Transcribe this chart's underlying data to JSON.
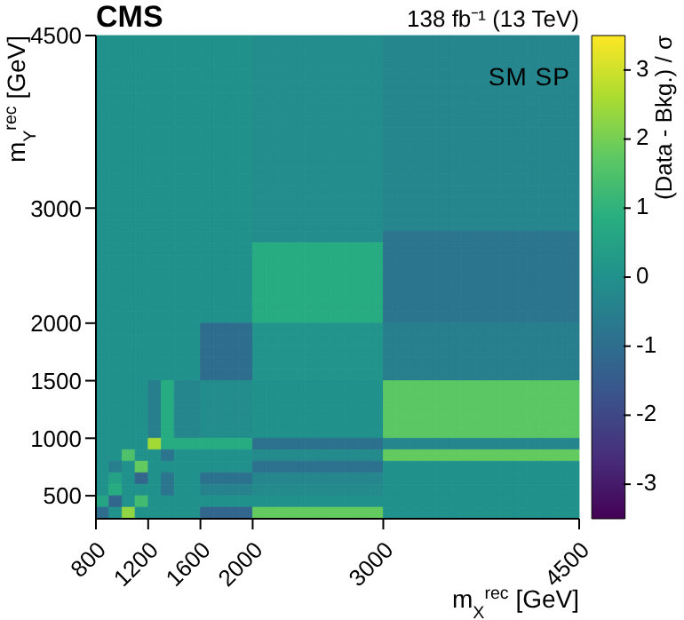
{
  "chart_data": {
    "type": "heatmap",
    "title": "CMS",
    "subtitle": "138 fb⁻¹ (13 TeV)",
    "annotations": [
      "SM SP"
    ],
    "xlabel": "m$_{X}$$^{rec}$ [GeV]",
    "ylabel": "m$_{Y}$$^{rec}$ [GeV]",
    "clabel": "(Data - Bkg.) / σ",
    "xlim": [
      800,
      4500
    ],
    "xticks": [
      800,
      1200,
      1600,
      2000,
      3000,
      4500
    ],
    "ylim": [
      300,
      4500
    ],
    "yticks": [
      500,
      1000,
      1500,
      2000,
      3000,
      4500
    ],
    "clim": [
      -3.5,
      3.5
    ],
    "cticks": [
      -3,
      -2,
      -1,
      0,
      1,
      2,
      3
    ],
    "cells": [
      [
        0,
        0,
        0,
        0,
        0,
        0,
        0,
        0,
        0,
        0,
        0,
        0,
        -0.1,
        -0.1,
        -0.1,
        -0.1,
        -0.1,
        -0.1,
        -0.1,
        -0.1,
        -0.1,
        -0.1,
        -0.3,
        -0.3,
        -0.3,
        -0.3,
        -0.3,
        -0.3,
        -0.3,
        -0.3,
        -0.3,
        -0.3,
        -0.3,
        -0.3,
        -0.3,
        -0.3,
        -0.3
      ],
      [
        0,
        0,
        0,
        0,
        0,
        0,
        0,
        0,
        0,
        0,
        0,
        0,
        -0.1,
        -0.1,
        -0.1,
        -0.1,
        -0.1,
        -0.1,
        -0.1,
        -0.1,
        -0.1,
        -0.1,
        -0.3,
        -0.3,
        -0.3,
        -0.3,
        -0.3,
        -0.3,
        -0.3,
        -0.3,
        -0.3,
        -0.3,
        -0.3,
        -0.3,
        -0.3,
        -0.3,
        -0.3
      ],
      [
        0,
        0,
        0,
        0,
        0,
        0,
        0,
        0,
        0,
        0,
        0,
        0,
        -0.1,
        -0.1,
        -0.1,
        -0.1,
        -0.1,
        -0.1,
        -0.1,
        -0.1,
        -0.1,
        -0.1,
        -0.3,
        -0.3,
        -0.3,
        -0.3,
        -0.3,
        -0.3,
        -0.3,
        -0.3,
        -0.3,
        -0.3,
        -0.3,
        -0.3,
        -0.3,
        -0.3,
        -0.3
      ],
      [
        0,
        0,
        0,
        0,
        0,
        0,
        0,
        0,
        0,
        0,
        0,
        0,
        -0.1,
        -0.1,
        -0.1,
        -0.1,
        -0.1,
        -0.1,
        -0.1,
        -0.1,
        -0.1,
        -0.1,
        -0.3,
        -0.3,
        -0.3,
        -0.3,
        -0.3,
        -0.3,
        -0.3,
        -0.3,
        -0.3,
        -0.3,
        -0.3,
        -0.3,
        -0.3,
        -0.3,
        -0.3
      ],
      [
        0,
        0,
        0,
        0,
        0,
        0,
        0,
        0,
        0,
        0,
        0,
        0,
        -0.1,
        -0.1,
        -0.1,
        -0.1,
        -0.1,
        -0.1,
        -0.1,
        -0.1,
        -0.1,
        -0.1,
        -0.3,
        -0.3,
        -0.3,
        -0.3,
        -0.3,
        -0.3,
        -0.3,
        -0.3,
        -0.3,
        -0.3,
        -0.3,
        -0.3,
        -0.3,
        -0.3,
        -0.3
      ],
      [
        0,
        0,
        0,
        0,
        0,
        0,
        0,
        0,
        0,
        0,
        0,
        0,
        -0.1,
        -0.1,
        -0.1,
        -0.1,
        -0.1,
        -0.1,
        -0.1,
        -0.1,
        -0.1,
        -0.1,
        -0.3,
        -0.3,
        -0.3,
        -0.3,
        -0.3,
        -0.3,
        -0.3,
        -0.3,
        -0.3,
        -0.3,
        -0.3,
        -0.3,
        -0.3,
        -0.3,
        -0.3
      ],
      [
        0,
        0,
        0,
        0,
        0,
        0,
        0,
        0,
        0,
        0,
        0,
        0,
        -0.1,
        -0.1,
        -0.1,
        -0.1,
        -0.1,
        -0.1,
        -0.1,
        -0.1,
        -0.1,
        -0.1,
        -0.3,
        -0.3,
        -0.3,
        -0.3,
        -0.3,
        -0.3,
        -0.3,
        -0.3,
        -0.3,
        -0.3,
        -0.3,
        -0.3,
        -0.3,
        -0.3,
        -0.3
      ],
      [
        0,
        0,
        0,
        0,
        0,
        0,
        0,
        0,
        0,
        0,
        0,
        0,
        -0.1,
        -0.1,
        -0.1,
        -0.1,
        -0.1,
        -0.1,
        -0.1,
        -0.1,
        -0.1,
        -0.1,
        -0.3,
        -0.3,
        -0.3,
        -0.3,
        -0.3,
        -0.3,
        -0.3,
        -0.3,
        -0.3,
        -0.3,
        -0.3,
        -0.3,
        -0.3,
        -0.3,
        -0.3
      ],
      [
        0,
        0,
        0,
        0,
        0,
        0,
        0,
        0,
        0,
        0,
        0,
        0,
        -0.1,
        -0.1,
        -0.1,
        -0.1,
        -0.1,
        -0.1,
        -0.1,
        -0.1,
        -0.1,
        -0.1,
        -0.3,
        -0.3,
        -0.3,
        -0.3,
        -0.3,
        -0.3,
        -0.3,
        -0.3,
        -0.3,
        -0.3,
        -0.3,
        -0.3,
        -0.3,
        -0.3,
        -0.3
      ],
      [
        0,
        0,
        0,
        0,
        0,
        0,
        0,
        0,
        0,
        0,
        0,
        0,
        -0.1,
        -0.1,
        -0.1,
        -0.1,
        -0.1,
        -0.1,
        -0.1,
        -0.1,
        -0.1,
        -0.1,
        -0.3,
        -0.3,
        -0.3,
        -0.3,
        -0.3,
        -0.3,
        -0.3,
        -0.3,
        -0.3,
        -0.3,
        -0.3,
        -0.3,
        -0.3,
        -0.3,
        -0.3
      ],
      [
        0,
        0,
        0,
        0,
        0,
        0,
        0,
        0,
        0,
        0,
        0,
        0,
        -0.1,
        -0.1,
        -0.1,
        -0.1,
        -0.1,
        -0.1,
        -0.1,
        -0.1,
        -0.1,
        -0.1,
        -0.3,
        -0.3,
        -0.3,
        -0.3,
        -0.3,
        -0.3,
        -0.3,
        -0.3,
        -0.3,
        -0.3,
        -0.3,
        -0.3,
        -0.3,
        -0.3,
        -0.3
      ],
      [
        0,
        0,
        0,
        0,
        0,
        0,
        0,
        0,
        0,
        0,
        0,
        0,
        -0.1,
        -0.1,
        -0.1,
        -0.1,
        -0.1,
        -0.1,
        -0.1,
        -0.1,
        -0.1,
        -0.1,
        -0.3,
        -0.3,
        -0.3,
        -0.3,
        -0.3,
        -0.3,
        -0.3,
        -0.3,
        -0.3,
        -0.3,
        -0.3,
        -0.3,
        -0.3,
        -0.3,
        -0.3
      ],
      [
        0,
        0,
        0,
        0,
        0,
        0,
        0,
        0,
        0,
        0,
        0,
        0,
        -0.1,
        -0.1,
        -0.1,
        -0.1,
        -0.1,
        -0.1,
        -0.1,
        -0.1,
        -0.1,
        -0.1,
        -0.3,
        -0.3,
        -0.3,
        -0.3,
        -0.3,
        -0.3,
        -0.3,
        -0.3,
        -0.3,
        -0.3,
        -0.3,
        -0.3,
        -0.3,
        -0.3,
        -0.3
      ],
      [
        0,
        0,
        0,
        0,
        0,
        0,
        0,
        0,
        0,
        0,
        0,
        0,
        -0.1,
        -0.1,
        -0.1,
        -0.1,
        -0.1,
        -0.1,
        -0.1,
        -0.1,
        -0.1,
        -0.1,
        -0.3,
        -0.3,
        -0.3,
        -0.3,
        -0.3,
        -0.3,
        -0.3,
        -0.3,
        -0.3,
        -0.3,
        -0.3,
        -0.3,
        -0.3,
        -0.3,
        -0.3
      ],
      [
        0,
        0,
        0,
        0,
        0,
        0,
        0,
        0,
        0,
        0,
        0,
        0,
        -0.1,
        -0.1,
        -0.1,
        -0.1,
        -0.1,
        -0.1,
        -0.1,
        -0.1,
        -0.1,
        -0.1,
        -0.3,
        -0.3,
        -0.3,
        -0.3,
        -0.3,
        -0.3,
        -0.3,
        -0.3,
        -0.3,
        -0.3,
        -0.3,
        -0.3,
        -0.3,
        -0.3,
        -0.3
      ],
      [
        0,
        0,
        0,
        0,
        0,
        0,
        0,
        0,
        0,
        0,
        0,
        0,
        -0.1,
        -0.1,
        -0.1,
        -0.1,
        -0.1,
        -0.1,
        -0.1,
        -0.1,
        -0.1,
        -0.1,
        -0.3,
        -0.3,
        -0.3,
        -0.3,
        -0.3,
        -0.3,
        -0.3,
        -0.3,
        -0.3,
        -0.3,
        -0.3,
        -0.3,
        -0.3,
        -0.3,
        -0.3
      ],
      [
        0,
        0,
        0,
        0,
        0,
        0,
        0,
        0,
        0,
        0,
        0,
        0,
        -0.1,
        -0.1,
        -0.1,
        -0.1,
        -0.1,
        -0.1,
        -0.1,
        -0.1,
        -0.1,
        -0.1,
        -0.3,
        -0.3,
        -0.3,
        -0.3,
        -0.3,
        -0.3,
        -0.3,
        -0.3,
        -0.3,
        -0.3,
        -0.3,
        -0.3,
        -0.3,
        -0.3,
        -0.3
      ],
      [
        0,
        0,
        0,
        0,
        0,
        0,
        0,
        0,
        0,
        0,
        0,
        0,
        -0.1,
        -0.1,
        -0.1,
        -0.1,
        -0.1,
        -0.1,
        -0.1,
        -0.1,
        -0.1,
        -0.1,
        -0.8,
        -0.8,
        -0.8,
        -0.8,
        -0.8,
        -0.8,
        -0.8,
        -0.8,
        -0.8,
        -0.8,
        -0.8,
        -0.8,
        -0.8,
        -0.8,
        -0.8
      ],
      [
        0,
        0,
        0,
        0,
        0,
        0,
        0,
        0,
        0,
        0,
        0,
        0,
        0.8,
        0.8,
        0.8,
        0.8,
        0.8,
        0.8,
        0.8,
        0.8,
        0.8,
        0.8,
        -0.8,
        -0.8,
        -0.8,
        -0.8,
        -0.8,
        -0.8,
        -0.8,
        -0.8,
        -0.8,
        -0.8,
        -0.8,
        -0.8,
        -0.8,
        -0.8,
        -0.8
      ],
      [
        0,
        0,
        0,
        0,
        0,
        0,
        0,
        0,
        0,
        0,
        0,
        0,
        0.8,
        0.8,
        0.8,
        0.8,
        0.8,
        0.8,
        0.8,
        0.8,
        0.8,
        0.8,
        -0.8,
        -0.8,
        -0.8,
        -0.8,
        -0.8,
        -0.8,
        -0.8,
        -0.8,
        -0.8,
        -0.8,
        -0.8,
        -0.8,
        -0.8,
        -0.8,
        -0.8
      ],
      [
        0,
        0,
        0,
        0,
        0,
        0,
        0,
        0,
        0,
        0,
        0,
        0,
        0.8,
        0.8,
        0.8,
        0.8,
        0.8,
        0.8,
        0.8,
        0.8,
        0.8,
        0.8,
        -0.8,
        -0.8,
        -0.8,
        -0.8,
        -0.8,
        -0.8,
        -0.8,
        -0.8,
        -0.8,
        -0.8,
        -0.8,
        -0.8,
        -0.8,
        -0.8,
        -0.8
      ],
      [
        0,
        0,
        0,
        0,
        0,
        0,
        0,
        0,
        0,
        0,
        0,
        0,
        0.8,
        0.8,
        0.8,
        0.8,
        0.8,
        0.8,
        0.8,
        0.8,
        0.8,
        0.8,
        -0.8,
        -0.8,
        -0.8,
        -0.8,
        -0.8,
        -0.8,
        -0.8,
        -0.8,
        -0.8,
        -0.8,
        -0.8,
        -0.8,
        -0.8,
        -0.8,
        -0.8
      ],
      [
        0,
        0,
        0,
        0,
        0,
        0,
        0,
        0,
        0,
        0,
        0,
        0,
        0.8,
        0.8,
        0.8,
        0.8,
        0.8,
        0.8,
        0.8,
        0.8,
        0.8,
        0.8,
        -0.8,
        -0.8,
        -0.8,
        -0.8,
        -0.8,
        -0.8,
        -0.8,
        -0.8,
        -0.8,
        -0.8,
        -0.8,
        -0.8,
        -0.8,
        -0.8,
        -0.8
      ],
      [
        0,
        0,
        0,
        0,
        0,
        0,
        0,
        0,
        0,
        0,
        0,
        0,
        0.8,
        0.8,
        0.8,
        0.8,
        0.8,
        0.8,
        0.8,
        0.8,
        0.8,
        0.8,
        -0.8,
        -0.8,
        -0.8,
        -0.8,
        -0.8,
        -0.8,
        -0.8,
        -0.8,
        -0.8,
        -0.8,
        -0.8,
        -0.8,
        -0.8,
        -0.8,
        -0.8
      ],
      [
        0,
        0,
        0,
        0,
        0,
        0,
        0,
        0,
        0,
        0,
        0,
        0,
        0.8,
        0.8,
        0.8,
        0.8,
        0.8,
        0.8,
        0.8,
        0.8,
        0.8,
        0.8,
        -0.8,
        -0.8,
        -0.8,
        -0.8,
        -0.8,
        -0.8,
        -0.8,
        -0.8,
        -0.8,
        -0.8,
        -0.8,
        -0.8,
        -0.8,
        -0.8,
        -0.8
      ],
      [
        0,
        0,
        0,
        0,
        0,
        0,
        0,
        0,
        -1.0,
        -1.0,
        -1.0,
        -1.0,
        0.1,
        0.1,
        0.1,
        0.1,
        0.1,
        0.1,
        0.1,
        0.1,
        0.1,
        0.1,
        -0.5,
        -0.5,
        -0.5,
        -0.5,
        -0.5,
        -0.5,
        -0.5,
        -0.5,
        -0.5,
        -0.5,
        -0.5,
        -0.5,
        -0.5,
        -0.5,
        -0.5
      ],
      [
        0,
        0,
        0,
        0,
        0,
        0,
        0,
        0,
        -1.0,
        -1.0,
        -1.0,
        -1.0,
        0.1,
        0.1,
        0.1,
        0.1,
        0.1,
        0.1,
        0.1,
        0.1,
        0.1,
        0.1,
        -0.5,
        -0.5,
        -0.5,
        -0.5,
        -0.5,
        -0.5,
        -0.5,
        -0.5,
        -0.5,
        -0.5,
        -0.5,
        -0.5,
        -0.5,
        -0.5,
        -0.5
      ],
      [
        0,
        0,
        0,
        0,
        0,
        0,
        0,
        0,
        -1.0,
        -1.0,
        -1.0,
        -1.0,
        0.1,
        0.1,
        0.1,
        0.1,
        0.1,
        0.1,
        0.1,
        0.1,
        0.1,
        0.1,
        -0.5,
        -0.5,
        -0.5,
        -0.5,
        -0.5,
        -0.5,
        -0.5,
        -0.5,
        -0.5,
        -0.5,
        -0.5,
        -0.5,
        -0.5,
        -0.5,
        -0.5
      ],
      [
        0,
        0,
        0,
        0,
        0,
        0,
        0,
        0,
        -1.0,
        -1.0,
        -1.0,
        -1.0,
        0.1,
        0.1,
        0.1,
        0.1,
        0.1,
        0.1,
        0.1,
        0.1,
        0.1,
        0.1,
        -0.5,
        -0.5,
        -0.5,
        -0.5,
        -0.5,
        -0.5,
        -0.5,
        -0.5,
        -0.5,
        -0.5,
        -0.5,
        -0.5,
        -0.5,
        -0.5,
        -0.5
      ],
      [
        0,
        0,
        0,
        0,
        0,
        0,
        0,
        0,
        -1.0,
        -1.0,
        -1.0,
        -1.0,
        0.1,
        0.1,
        0.1,
        0.1,
        0.1,
        0.1,
        0.1,
        0.1,
        0.1,
        0.1,
        -0.5,
        -0.5,
        -0.5,
        -0.5,
        -0.5,
        -0.5,
        -0.5,
        -0.5,
        -0.5,
        -0.5,
        -0.5,
        -0.5,
        -0.5,
        -0.5,
        -0.5
      ],
      [
        0,
        0,
        0,
        0,
        -0.5,
        0.8,
        -0.3,
        -0.3,
        -0.1,
        -0.1,
        -0.1,
        -0.1,
        0,
        0,
        0,
        0,
        0,
        0,
        0,
        0,
        0,
        0,
        1.7,
        1.7,
        1.7,
        1.7,
        1.7,
        1.7,
        1.7,
        1.7,
        1.7,
        1.7,
        1.7,
        1.7,
        1.7,
        1.7,
        1.7
      ],
      [
        0,
        0,
        0,
        0,
        -0.5,
        0.8,
        -0.3,
        -0.3,
        -0.1,
        -0.1,
        -0.1,
        -0.1,
        0,
        0,
        0,
        0,
        0,
        0,
        0,
        0,
        0,
        0,
        1.7,
        1.7,
        1.7,
        1.7,
        1.7,
        1.7,
        1.7,
        1.7,
        1.7,
        1.7,
        1.7,
        1.7,
        1.7,
        1.7,
        1.7
      ],
      [
        0,
        0,
        0,
        0,
        -0.5,
        0.8,
        -0.3,
        -0.3,
        -0.1,
        -0.1,
        -0.1,
        -0.1,
        0,
        0,
        0,
        0,
        0,
        0,
        0,
        0,
        0,
        0,
        1.7,
        1.7,
        1.7,
        1.7,
        1.7,
        1.7,
        1.7,
        1.7,
        1.7,
        1.7,
        1.7,
        1.7,
        1.7,
        1.7,
        1.7
      ],
      [
        0,
        0,
        0,
        0,
        -0.5,
        0.8,
        -0.3,
        -0.3,
        -0.1,
        -0.1,
        -0.1,
        -0.1,
        0,
        0,
        0,
        0,
        0,
        0,
        0,
        0,
        0,
        0,
        1.7,
        1.7,
        1.7,
        1.7,
        1.7,
        1.7,
        1.7,
        1.7,
        1.7,
        1.7,
        1.7,
        1.7,
        1.7,
        1.7,
        1.7
      ],
      [
        0,
        0,
        0,
        0,
        -0.5,
        0.8,
        -0.3,
        -0.3,
        -0.1,
        -0.1,
        -0.1,
        -0.1,
        0,
        0,
        0,
        0,
        0,
        0,
        0,
        0,
        0,
        0,
        1.7,
        1.7,
        1.7,
        1.7,
        1.7,
        1.7,
        1.7,
        1.7,
        1.7,
        1.7,
        1.7,
        1.7,
        1.7,
        1.7,
        1.7
      ],
      [
        0,
        0,
        0,
        0,
        2.5,
        0.8,
        0.8,
        0.8,
        0.8,
        0.8,
        0.8,
        0.8,
        -0.9,
        -0.9,
        -0.9,
        -0.9,
        -0.9,
        -0.9,
        -0.9,
        -0.9,
        -0.9,
        -0.9,
        -0.3,
        -0.3,
        -0.3,
        -0.3,
        -0.3,
        -0.3,
        -0.3,
        -0.3,
        -0.3,
        -0.3,
        -0.3,
        -0.3,
        -0.3,
        -0.3,
        -0.3
      ],
      [
        0,
        0,
        1.5,
        0,
        0,
        -0.8,
        0,
        0,
        0,
        0,
        0,
        0,
        -0.2,
        -0.2,
        -0.2,
        -0.2,
        -0.2,
        -0.2,
        -0.2,
        -0.2,
        -0.2,
        -0.2,
        1.8,
        1.8,
        1.8,
        1.8,
        1.8,
        1.8,
        1.8,
        1.8,
        1.8,
        1.8,
        1.8,
        1.8,
        1.8,
        1.8,
        1.8
      ],
      [
        0,
        -0.5,
        0,
        1.8,
        0,
        0,
        0,
        0,
        0,
        0,
        0,
        0,
        -0.9,
        -0.9,
        -0.9,
        -0.9,
        -0.9,
        -0.9,
        -0.9,
        -0.9,
        -0.9,
        -0.9,
        0,
        0,
        0,
        0,
        0,
        0,
        0,
        0,
        0,
        0,
        0,
        0,
        0,
        0,
        0
      ],
      [
        0,
        0.5,
        0,
        -1.2,
        0,
        -0.8,
        0,
        0,
        -0.9,
        -0.9,
        -0.9,
        -0.9,
        -0.3,
        -0.3,
        -0.3,
        -0.3,
        -0.3,
        -0.3,
        -0.3,
        -0.3,
        -0.3,
        -0.3,
        0,
        0,
        0,
        0,
        0,
        0,
        0,
        0,
        0,
        0,
        0,
        0,
        0,
        0,
        0
      ],
      [
        0,
        0.8,
        0,
        0,
        0,
        -0.8,
        0,
        0,
        -0.4,
        -0.4,
        -0.4,
        -0.4,
        -0.2,
        -0.2,
        -0.2,
        -0.2,
        -0.2,
        -0.2,
        -0.2,
        -0.2,
        -0.2,
        -0.2,
        0,
        0,
        0,
        0,
        0,
        0,
        0,
        0,
        0,
        0,
        0,
        0,
        0,
        0,
        0
      ],
      [
        0.6,
        -1.2,
        0,
        1.3,
        0,
        0,
        0,
        0,
        0,
        0,
        0,
        0,
        0,
        0,
        0,
        0,
        0,
        0,
        0,
        0,
        0,
        0,
        0,
        0,
        0,
        0,
        0,
        0,
        0,
        0,
        0,
        0,
        0,
        0,
        0,
        0,
        0
      ],
      [
        -1.0,
        0,
        2.3,
        0,
        0,
        0,
        0,
        0,
        -1.2,
        -1.2,
        -1.2,
        -1.2,
        1.8,
        1.8,
        1.8,
        1.8,
        1.8,
        1.8,
        1.8,
        1.8,
        1.8,
        1.8,
        0,
        0,
        0,
        0,
        0,
        0,
        0,
        0,
        0,
        0,
        0,
        0,
        0,
        0,
        0
      ]
    ]
  }
}
